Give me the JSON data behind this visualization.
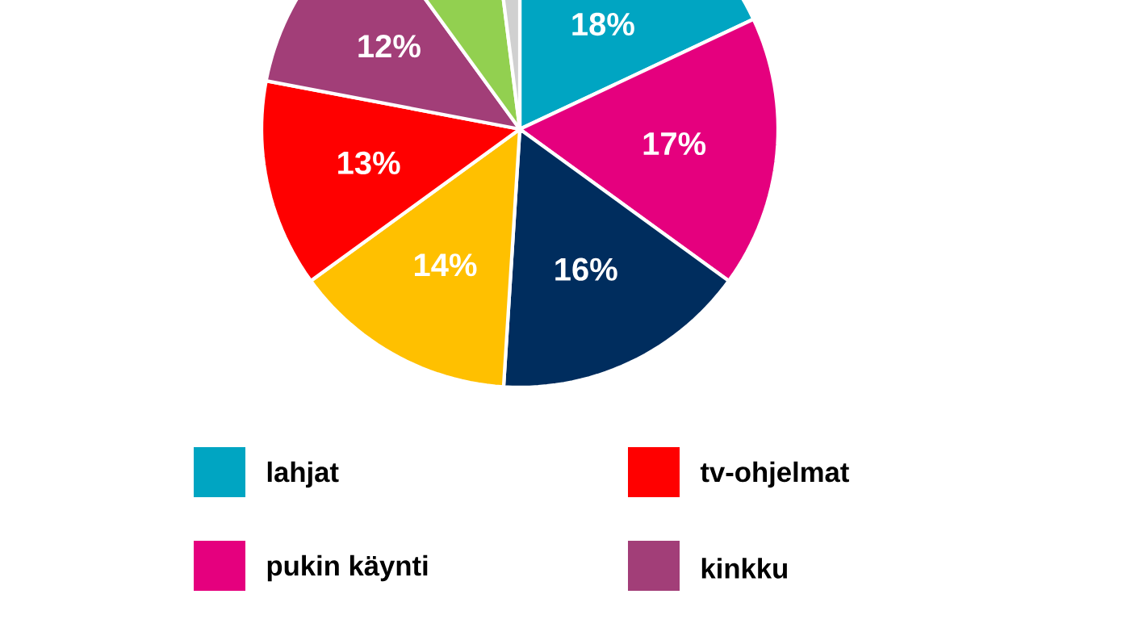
{
  "chart_data": {
    "type": "pie",
    "categories": [
      "lahjat",
      "pukin käynti",
      null,
      null,
      "tv-ohjelmat",
      "kinkku",
      null,
      null
    ],
    "values": [
      18,
      17,
      16,
      14,
      13,
      12,
      8,
      2
    ],
    "colors": [
      "#00a5c2",
      "#e5007e",
      "#002d5e",
      "#ffc000",
      "#ff0000",
      "#a23e78",
      "#92d050",
      "#d0d0d0"
    ],
    "value_labels": [
      "18%",
      "17%",
      "16%",
      "14%",
      "13%",
      "12%",
      null,
      null
    ],
    "legend": "bottom"
  }
}
